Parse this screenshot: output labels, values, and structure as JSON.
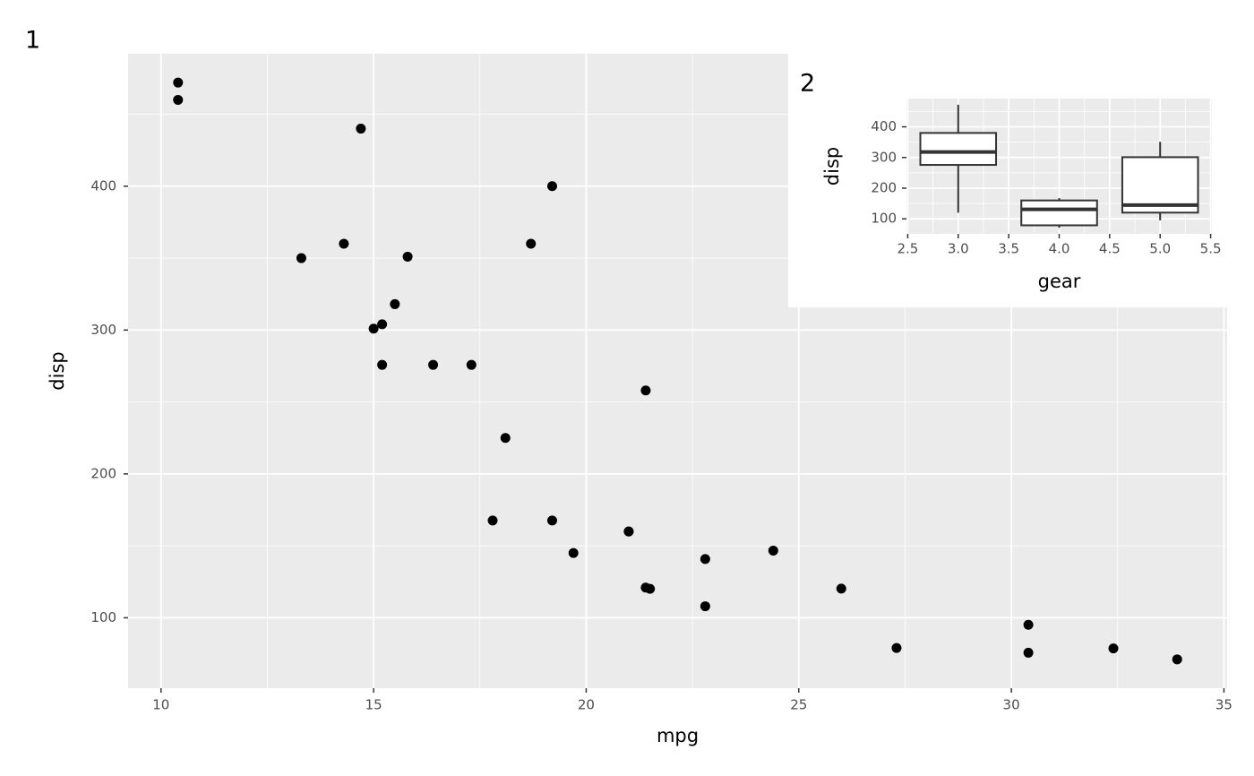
{
  "chart_data": [
    {
      "type": "scatter",
      "tag": "1",
      "xlabel": "mpg",
      "ylabel": "disp",
      "x": [
        21.0,
        21.0,
        22.8,
        21.4,
        18.7,
        18.1,
        14.3,
        24.4,
        22.8,
        19.2,
        17.8,
        16.4,
        17.3,
        15.2,
        10.4,
        10.4,
        14.7,
        32.4,
        30.4,
        33.9,
        21.5,
        15.5,
        15.2,
        13.3,
        19.2,
        27.3,
        26.0,
        30.4,
        15.8,
        19.7,
        15.0,
        21.4
      ],
      "values": [
        160,
        160,
        108,
        258,
        360,
        225,
        360,
        146.7,
        140.8,
        167.6,
        167.6,
        275.8,
        275.8,
        275.8,
        472,
        460,
        440,
        78.7,
        75.7,
        71.1,
        120.1,
        318,
        304,
        350,
        400,
        79,
        120.3,
        95.1,
        351,
        145,
        301,
        121
      ],
      "color": "#000000",
      "xlim": [
        9.225,
        35.075
      ],
      "ylim": [
        51.055,
        492.045
      ],
      "xticks": [
        10,
        15,
        20,
        25,
        30,
        35
      ],
      "yticks": [
        100,
        200,
        300,
        400
      ],
      "grid": true
    },
    {
      "type": "box",
      "tag": "2",
      "xlabel": "gear",
      "ylabel": "disp",
      "x": [
        3,
        4,
        5
      ],
      "lower": [
        120.1,
        71.1,
        95.1
      ],
      "q1": [
        275.8,
        78.925,
        120.3
      ],
      "median": [
        318,
        130.9,
        145
      ],
      "q3": [
        380,
        160,
        301
      ],
      "upper": [
        472,
        167.6,
        351
      ],
      "color": "#333333",
      "xlim": [
        2.4875,
        5.5125
      ],
      "ylim": [
        51.055,
        492.045
      ],
      "xticks": [
        2.5,
        {
          "value": 3,
          "label": "3.0"
        },
        3.5,
        {
          "value": 4,
          "label": "4.0"
        },
        4.5,
        {
          "value": 5,
          "label": "5.0"
        },
        5.5
      ],
      "yticks": [
        100,
        200,
        300,
        400
      ],
      "grid": true
    }
  ]
}
